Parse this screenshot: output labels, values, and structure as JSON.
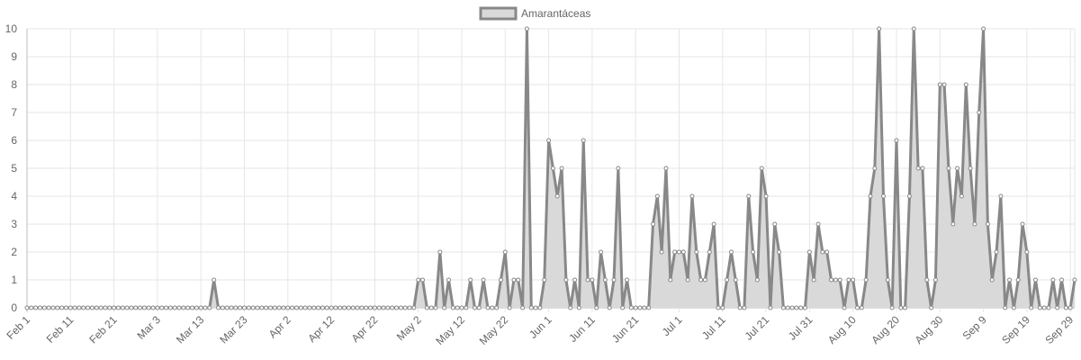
{
  "chart_data": {
    "type": "area",
    "title": "",
    "xlabel": "",
    "ylabel": "",
    "ylim": [
      0,
      10
    ],
    "y_ticks": [
      0,
      1,
      2,
      3,
      4,
      5,
      6,
      7,
      8,
      9,
      10
    ],
    "x_tick_labels": [
      "Feb 1",
      "Feb 11",
      "Feb 21",
      "Mar 3",
      "Mar 13",
      "Mar 23",
      "Apr 2",
      "Apr 12",
      "Apr 22",
      "May 2",
      "May 12",
      "May 22",
      "Jun 1",
      "Jun 11",
      "Jun 21",
      "Jul 1",
      "Jul 11",
      "Jul 21",
      "Jul 31",
      "Aug 10",
      "Aug 20",
      "Aug 30",
      "Sep 9",
      "Sep 19",
      "Sep 29"
    ],
    "x_start": "Feb 1",
    "x_end": "Sep 29",
    "x_tick_step_days": 10,
    "grid": true,
    "legend_position": "top-center",
    "series": [
      {
        "name": "Amarantáceas",
        "line_color": "#888888",
        "fill_color": "#d9d9d9",
        "values": [
          0,
          0,
          0,
          0,
          0,
          0,
          0,
          0,
          0,
          0,
          0,
          0,
          0,
          0,
          0,
          0,
          0,
          0,
          0,
          0,
          0,
          0,
          0,
          0,
          0,
          0,
          0,
          0,
          0,
          0,
          0,
          0,
          0,
          0,
          0,
          0,
          0,
          0,
          0,
          0,
          0,
          0,
          0,
          1,
          0,
          0,
          0,
          0,
          0,
          0,
          0,
          0,
          0,
          0,
          0,
          0,
          0,
          0,
          0,
          0,
          0,
          0,
          0,
          0,
          0,
          0,
          0,
          0,
          0,
          0,
          0,
          0,
          0,
          0,
          0,
          0,
          0,
          0,
          0,
          0,
          0,
          0,
          0,
          0,
          0,
          0,
          0,
          0,
          0,
          0,
          1,
          1,
          0,
          0,
          0,
          2,
          0,
          1,
          0,
          0,
          0,
          0,
          1,
          0,
          0,
          1,
          0,
          0,
          0,
          1,
          2,
          0,
          1,
          1,
          0,
          10,
          0,
          0,
          0,
          1,
          6,
          5,
          4,
          5,
          1,
          0,
          1,
          0,
          6,
          1,
          1,
          0,
          2,
          1,
          0,
          1,
          5,
          0,
          1,
          0,
          0,
          0,
          0,
          0,
          3,
          4,
          2,
          5,
          1,
          2,
          2,
          2,
          1,
          4,
          2,
          1,
          1,
          2,
          3,
          0,
          0,
          1,
          2,
          1,
          0,
          0,
          4,
          2,
          1,
          5,
          4,
          0,
          3,
          2,
          0,
          0,
          0,
          0,
          0,
          0,
          2,
          1,
          3,
          2,
          2,
          1,
          1,
          1,
          0,
          1,
          1,
          0,
          0,
          1,
          4,
          5,
          10,
          4,
          1,
          0,
          6,
          0,
          0,
          4,
          10,
          5,
          5,
          1,
          0,
          1,
          8,
          8,
          5,
          3,
          5,
          4,
          8,
          5,
          3,
          7,
          10,
          3,
          1,
          2,
          4,
          0,
          1,
          0,
          1,
          3,
          2,
          0,
          1,
          0,
          0,
          0,
          1,
          0,
          1,
          0,
          0,
          1
        ]
      }
    ]
  }
}
